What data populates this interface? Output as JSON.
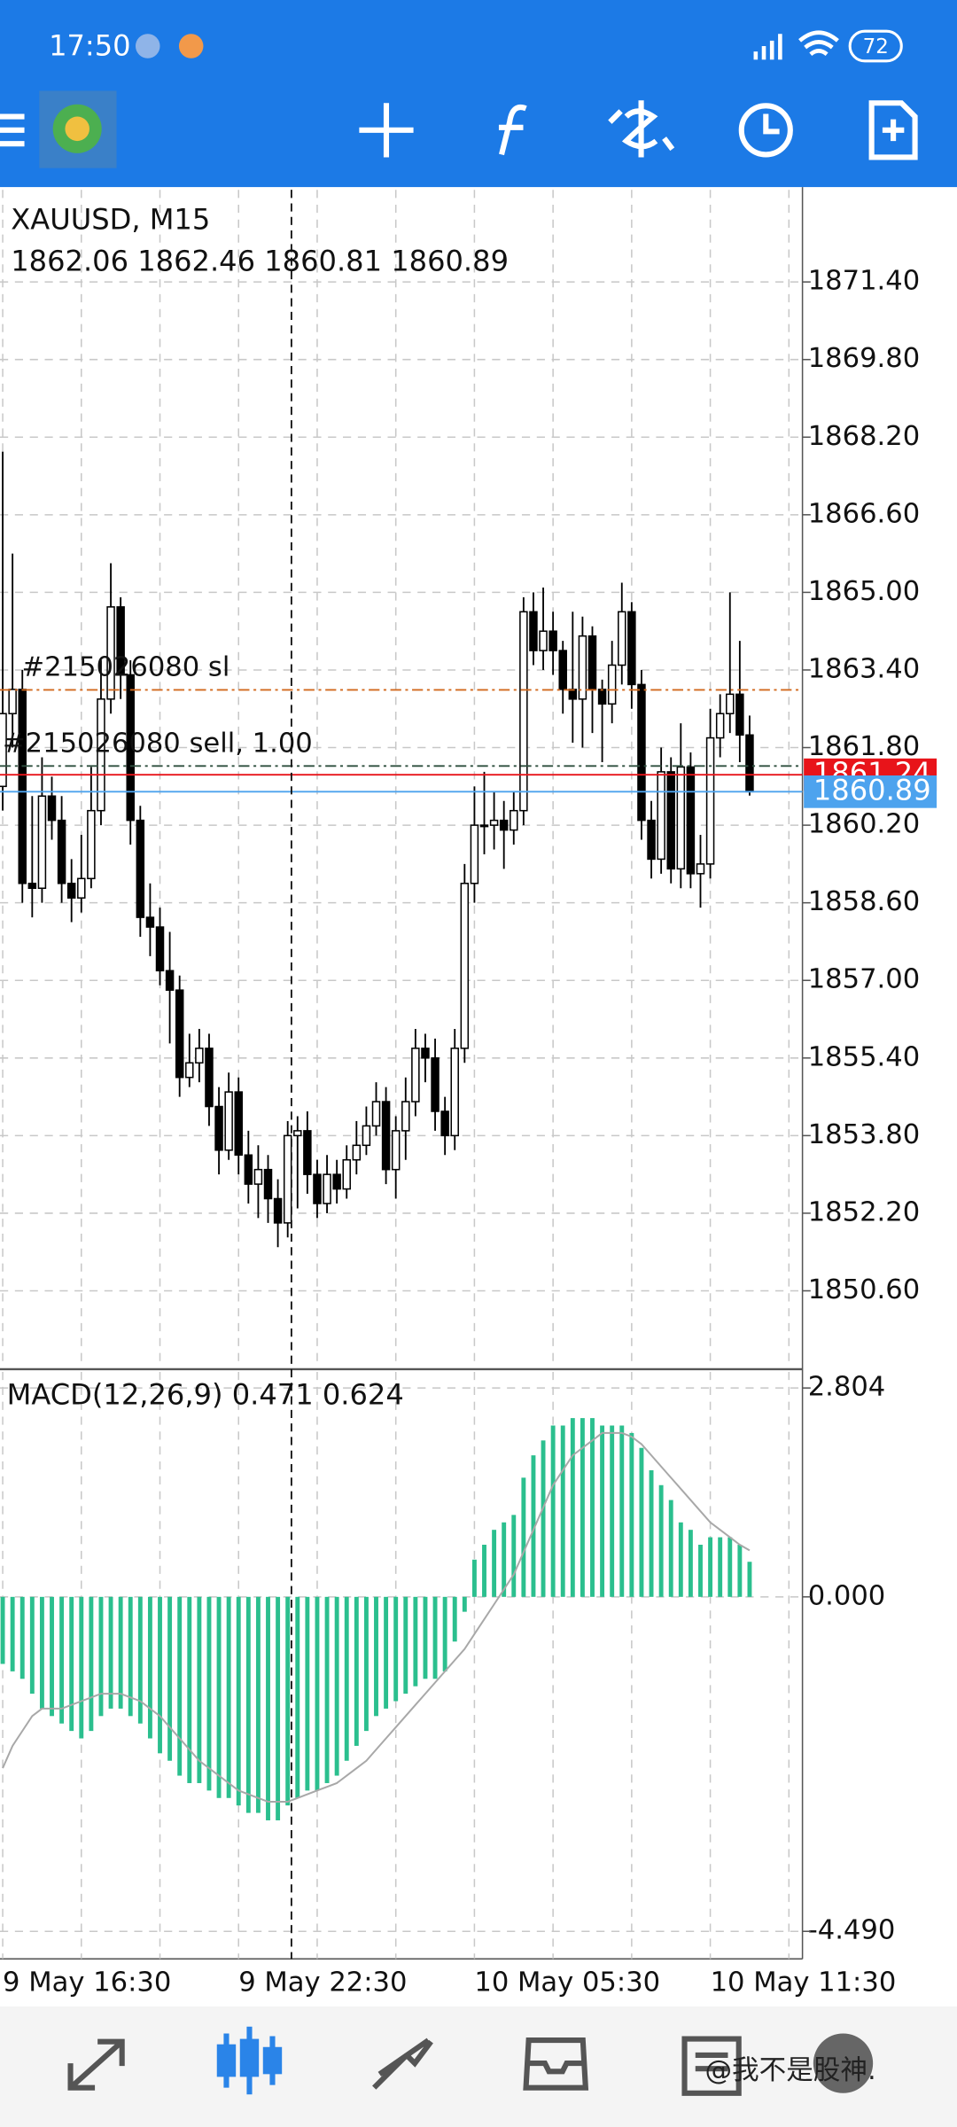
{
  "status_bar": {
    "time": "17:50",
    "battery": "72"
  },
  "chart_data": [
    {
      "type": "candlestick",
      "title": "XAUUSD, M15",
      "subtitle": "1862.06 1862.46 1860.81 1860.89",
      "categories": [
        "9 May 16:30",
        null,
        null,
        null,
        null,
        null,
        null,
        null,
        null,
        null,
        null,
        null,
        null,
        null,
        null,
        null,
        null,
        null,
        null,
        null,
        null,
        null,
        null,
        null,
        "9 May 22:30",
        null,
        null,
        null,
        null,
        null,
        null,
        null,
        null,
        null,
        null,
        null,
        null,
        null,
        null,
        null,
        null,
        null,
        null,
        null,
        null,
        null,
        null,
        null,
        "10 May 05:30",
        null,
        null,
        null,
        null,
        null,
        null,
        null,
        null,
        null,
        null,
        null,
        null,
        null,
        null,
        null,
        null,
        null,
        null,
        null,
        null,
        null,
        null,
        null,
        "10 May 11:30",
        null,
        null,
        null,
        null
      ],
      "open": [
        1861.0,
        1862.5,
        1863.0,
        1859.0,
        1858.9,
        1860.8,
        1860.3,
        1859.0,
        1858.7,
        1859.1,
        1860.5,
        1862.8,
        1864.7,
        1863.3,
        1860.3,
        1858.3,
        1858.1,
        1857.2,
        1856.8,
        1855.0,
        1855.3,
        1855.6,
        1854.4,
        1853.5,
        1854.7,
        1853.4,
        1852.8,
        1853.1,
        1852.5,
        1852.0,
        1853.8,
        1853.9,
        1853.0,
        1852.4,
        1853.0,
        1852.7,
        1853.3,
        1853.6,
        1854.0,
        1854.5,
        1853.1,
        1853.9,
        1854.5,
        1855.6,
        1855.4,
        1854.3,
        1853.8,
        1855.6,
        1859.0,
        1860.2,
        1860.2,
        1860.3,
        1860.1,
        1860.5,
        1864.6,
        1863.8,
        1864.2,
        1863.8,
        1863.0,
        1862.8,
        1864.1,
        1863.0,
        1862.7,
        1863.5,
        1864.6,
        1863.1,
        1860.3,
        1859.5,
        1861.3,
        1859.3,
        1861.4,
        1859.2,
        1859.4,
        1862.0,
        1862.5,
        1862.9,
        1862.06
      ],
      "high": [
        1867.9,
        1865.8,
        1863.4,
        1860.8,
        1861.6,
        1861.2,
        1860.8,
        1859.5,
        1860.0,
        1861.4,
        1863.6,
        1865.6,
        1864.9,
        1863.6,
        1860.6,
        1859.0,
        1858.5,
        1858.0,
        1857.1,
        1855.9,
        1856.0,
        1855.9,
        1854.8,
        1855.1,
        1855.0,
        1853.9,
        1853.6,
        1853.4,
        1852.9,
        1854.1,
        1854.2,
        1854.3,
        1853.3,
        1853.4,
        1853.3,
        1853.6,
        1854.1,
        1854.4,
        1854.9,
        1854.8,
        1854.2,
        1855.0,
        1856.0,
        1855.9,
        1855.8,
        1854.6,
        1856.0,
        1859.4,
        1861.0,
        1861.3,
        1860.9,
        1860.7,
        1860.9,
        1864.9,
        1865.0,
        1865.1,
        1864.6,
        1864.0,
        1864.6,
        1864.5,
        1864.3,
        1863.2,
        1864.0,
        1865.2,
        1864.8,
        1863.4,
        1860.7,
        1861.8,
        1861.6,
        1862.3,
        1861.7,
        1860.0,
        1862.6,
        1862.9,
        1865.0,
        1864.0,
        1862.46
      ],
      "low": [
        1860.5,
        1861.8,
        1858.6,
        1858.3,
        1858.6,
        1859.9,
        1858.6,
        1858.2,
        1858.4,
        1858.9,
        1860.2,
        1862.5,
        1862.8,
        1859.8,
        1857.9,
        1857.5,
        1856.9,
        1855.7,
        1854.6,
        1854.8,
        1854.9,
        1854.0,
        1853.0,
        1853.3,
        1853.0,
        1852.4,
        1852.1,
        1852.0,
        1851.5,
        1851.7,
        1852.3,
        1852.6,
        1852.1,
        1852.2,
        1852.4,
        1852.5,
        1853.0,
        1853.4,
        1853.8,
        1852.8,
        1852.5,
        1853.3,
        1854.2,
        1854.9,
        1853.9,
        1853.4,
        1853.5,
        1855.3,
        1858.6,
        1859.6,
        1859.7,
        1859.3,
        1859.8,
        1860.2,
        1863.5,
        1863.4,
        1863.3,
        1862.5,
        1861.9,
        1861.8,
        1862.1,
        1861.5,
        1862.3,
        1863.1,
        1862.6,
        1859.9,
        1859.1,
        1859.2,
        1859.0,
        1858.9,
        1858.9,
        1858.5,
        1859.1,
        1861.6,
        1862.1,
        1861.5,
        1860.81
      ],
      "close": [
        1862.5,
        1863.0,
        1859.0,
        1858.9,
        1860.8,
        1860.3,
        1859.0,
        1858.7,
        1859.1,
        1860.5,
        1862.8,
        1864.7,
        1863.3,
        1860.3,
        1858.3,
        1858.1,
        1857.2,
        1856.8,
        1855.0,
        1855.3,
        1855.6,
        1854.4,
        1853.5,
        1854.7,
        1853.4,
        1852.8,
        1853.1,
        1852.5,
        1852.0,
        1853.8,
        1853.9,
        1853.0,
        1852.4,
        1853.0,
        1852.7,
        1853.3,
        1853.6,
        1854.0,
        1854.5,
        1853.1,
        1853.9,
        1854.5,
        1855.6,
        1855.4,
        1854.3,
        1853.8,
        1855.6,
        1859.0,
        1860.2,
        1860.2,
        1860.3,
        1860.1,
        1860.5,
        1864.6,
        1863.8,
        1864.2,
        1863.8,
        1863.0,
        1862.8,
        1864.1,
        1863.0,
        1862.7,
        1863.5,
        1864.6,
        1863.1,
        1860.3,
        1859.5,
        1861.3,
        1859.3,
        1861.4,
        1859.2,
        1859.4,
        1862.0,
        1862.5,
        1862.9,
        1862.06,
        1860.89
      ],
      "ylim": [
        1849.04,
        1873.3
      ],
      "yticks": [
        {
          "value": 1871.4,
          "label": "1871.40"
        },
        {
          "value": 1869.8,
          "label": "1869.80"
        },
        {
          "value": 1868.2,
          "label": "1868.20"
        },
        {
          "value": 1866.6,
          "label": "1866.60"
        },
        {
          "value": 1865.0,
          "label": "1865.00"
        },
        {
          "value": 1863.4,
          "label": "1863.40"
        },
        {
          "value": 1861.8,
          "label": "1861.80"
        },
        {
          "value": 1860.2,
          "label": "1860.20"
        },
        {
          "value": 1858.6,
          "label": "1858.60"
        },
        {
          "value": 1857.0,
          "label": "1857.00"
        },
        {
          "value": 1855.4,
          "label": "1855.40"
        },
        {
          "value": 1853.8,
          "label": "1853.80"
        },
        {
          "value": 1852.2,
          "label": "1852.20"
        },
        {
          "value": 1850.6,
          "label": "1850.60"
        }
      ],
      "grid": true,
      "order_lines": [
        {
          "label": "#215026080 sl",
          "value": 1862.99,
          "color": "#d2691e"
        },
        {
          "label": "#215026080 sell, 1.00",
          "value": 1861.42,
          "color": "#2f4f3f"
        }
      ],
      "price_lines": [
        {
          "value": 1861.24,
          "color": "#e8141a"
        },
        {
          "value": 1860.89,
          "color": "#4da3ee"
        }
      ]
    },
    {
      "type": "macd",
      "title": "MACD(12,26,9) 0.471 0.624",
      "series": [
        {
          "type": "bar",
          "color": "#2bbf8e",
          "values": [
            -0.9,
            -1.0,
            -1.1,
            -1.3,
            -1.5,
            -1.6,
            -1.7,
            -1.8,
            -1.9,
            -1.8,
            -1.6,
            -1.5,
            -1.5,
            -1.6,
            -1.7,
            -1.9,
            -2.1,
            -2.2,
            -2.4,
            -2.5,
            -2.5,
            -2.6,
            -2.7,
            -2.7,
            -2.8,
            -2.9,
            -2.9,
            -3.0,
            -3.0,
            -2.8,
            -2.7,
            -2.6,
            -2.6,
            -2.5,
            -2.4,
            -2.2,
            -2.0,
            -1.8,
            -1.6,
            -1.5,
            -1.4,
            -1.3,
            -1.2,
            -1.1,
            -1.1,
            -1.0,
            -0.6,
            -0.2,
            0.5,
            0.7,
            0.9,
            1.0,
            1.1,
            1.6,
            1.9,
            2.1,
            2.3,
            2.3,
            2.4,
            2.4,
            2.4,
            2.3,
            2.3,
            2.3,
            2.2,
            2.0,
            1.7,
            1.5,
            1.3,
            1.0,
            0.9,
            0.7,
            0.8,
            0.8,
            0.8,
            0.7,
            0.471
          ]
        },
        {
          "type": "line",
          "color": "#a8a8a8",
          "values": [
            -2.3,
            -2.0,
            -1.8,
            -1.6,
            -1.5,
            -1.5,
            -1.5,
            -1.45,
            -1.4,
            -1.35,
            -1.3,
            -1.3,
            -1.3,
            -1.35,
            -1.4,
            -1.5,
            -1.6,
            -1.75,
            -1.9,
            -2.05,
            -2.2,
            -2.3,
            -2.4,
            -2.5,
            -2.6,
            -2.65,
            -2.7,
            -2.75,
            -2.75,
            -2.75,
            -2.7,
            -2.65,
            -2.6,
            -2.55,
            -2.5,
            -2.4,
            -2.3,
            -2.2,
            -2.05,
            -1.9,
            -1.75,
            -1.6,
            -1.45,
            -1.3,
            -1.15,
            -1.0,
            -0.85,
            -0.7,
            -0.5,
            -0.3,
            -0.1,
            0.1,
            0.3,
            0.6,
            0.9,
            1.2,
            1.5,
            1.7,
            1.9,
            2.0,
            2.1,
            2.2,
            2.2,
            2.2,
            2.15,
            2.05,
            1.9,
            1.75,
            1.6,
            1.45,
            1.3,
            1.15,
            1.0,
            0.9,
            0.8,
            0.7,
            0.624
          ]
        }
      ],
      "ylim": [
        -4.86,
        3.02
      ],
      "yticks": [
        2.804,
        {
          "value": 0,
          "label": "0.000"
        },
        {
          "value": -4.49,
          "label": "-4.490"
        }
      ],
      "grid": true
    }
  ],
  "watermark": "@我不是股神."
}
